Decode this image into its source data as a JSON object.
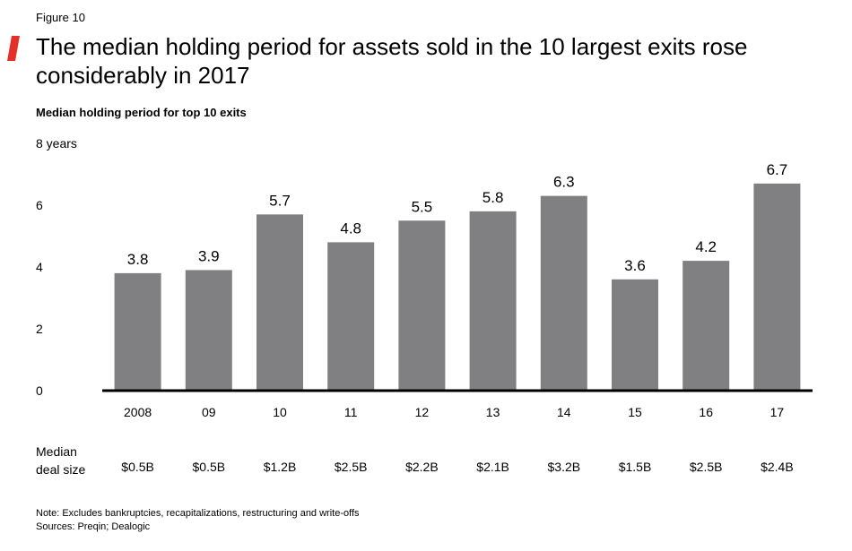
{
  "figure_label": "Figure 10",
  "title": "The median holding period for assets sold in the 10 largest exits rose considerably in 2017",
  "subtitle": "Median holding period for top 10 exits",
  "colors": {
    "accent": "#e53027",
    "bar": "#808083",
    "axis": "#000000"
  },
  "chart_data": {
    "type": "bar",
    "title": "The median holding period for assets sold in the 10 largest exits rose considerably in 2017",
    "subtitle": "Median holding period for top 10 exits",
    "categories": [
      "2008",
      "09",
      "10",
      "11",
      "12",
      "13",
      "14",
      "15",
      "16",
      "17"
    ],
    "values": [
      3.8,
      3.9,
      5.7,
      4.8,
      5.5,
      5.8,
      6.3,
      3.6,
      4.2,
      6.7
    ],
    "value_labels": [
      "3.8",
      "3.9",
      "5.7",
      "4.8",
      "5.5",
      "5.8",
      "6.3",
      "3.6",
      "4.2",
      "6.7"
    ],
    "ylim": [
      0,
      8
    ],
    "y_ticks": [
      0,
      2,
      4,
      6,
      8
    ],
    "y_tick_labels": [
      "0",
      "2",
      "4",
      "6",
      "8 years"
    ],
    "grid": false,
    "deal_size_label": [
      "Median",
      "deal size"
    ],
    "deal_sizes": [
      "$0.5B",
      "$0.5B",
      "$1.2B",
      "$2.5B",
      "$2.2B",
      "$2.1B",
      "$3.2B",
      "$1.5B",
      "$2.5B",
      "$2.4B"
    ]
  },
  "notes": {
    "note": "Note: Excludes bankruptcies, recapitalizations, restructuring and write-offs",
    "sources": "Sources: Preqin; Dealogic"
  }
}
